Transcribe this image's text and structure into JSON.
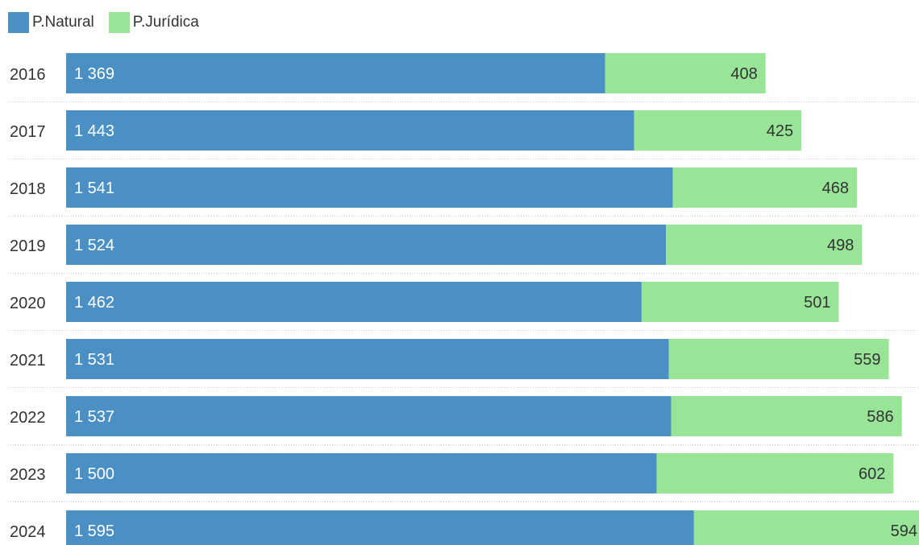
{
  "chart_data": {
    "type": "bar",
    "orientation": "horizontal",
    "stacked": true,
    "categories": [
      "2016",
      "2017",
      "2018",
      "2019",
      "2020",
      "2021",
      "2022",
      "2023",
      "2024"
    ],
    "series": [
      {
        "name": "P.Natural",
        "color": "#4a90c4",
        "values": [
          1369,
          1443,
          1541,
          1524,
          1462,
          1531,
          1537,
          1500,
          1595
        ],
        "labels": [
          "1 369",
          "1 443",
          "1 541",
          "1 524",
          "1 462",
          "1 531",
          "1 537",
          "1 500",
          "1 595"
        ]
      },
      {
        "name": "P.Jurídica",
        "color": "#98e598",
        "values": [
          408,
          425,
          468,
          498,
          501,
          559,
          586,
          602,
          594
        ],
        "labels": [
          "408",
          "425",
          "468",
          "498",
          "501",
          "559",
          "586",
          "602",
          "594"
        ]
      }
    ],
    "legend_position": "top-left",
    "grid": "dotted separators between rows"
  }
}
